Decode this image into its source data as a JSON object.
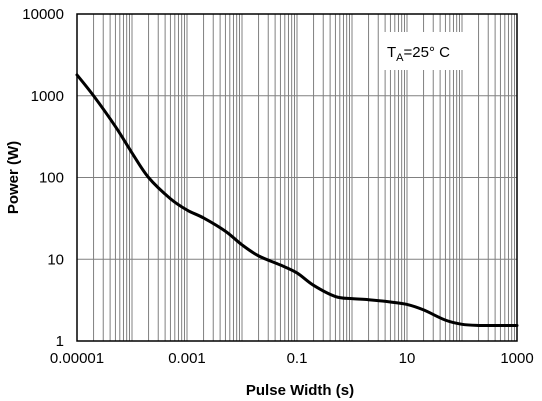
{
  "chart_data": {
    "type": "line",
    "title": "",
    "xlabel": "Pulse Width (s)",
    "ylabel": "Power (W)",
    "x_scale": "log",
    "y_scale": "log",
    "xlim": [
      1e-05,
      1000
    ],
    "ylim": [
      1,
      10000
    ],
    "x_ticks": [
      1e-05,
      0.001,
      0.1,
      10,
      1000
    ],
    "x_tick_labels": [
      "0.00001",
      "0.001",
      "0.1",
      "10",
      "1000"
    ],
    "y_ticks": [
      1,
      10,
      100,
      1000,
      10000
    ],
    "y_tick_labels": [
      "1",
      "10",
      "100",
      "1000",
      "10000"
    ],
    "grid": true,
    "legend": "none",
    "annotation": {
      "base": "T",
      "subscript": "A",
      "rest": "=25° C"
    },
    "line_color": "#000000",
    "grid_color": "#808080",
    "series": [
      {
        "x": [
          1e-05,
          2e-05,
          5e-05,
          0.0001,
          0.0002,
          0.0005,
          0.001,
          0.002,
          0.005,
          0.01,
          0.02,
          0.05,
          0.1,
          0.2,
          0.5,
          1,
          2,
          5,
          10,
          20,
          50,
          100,
          200,
          500,
          1000
        ],
        "y": [
          1800,
          1000,
          420,
          200,
          100,
          55,
          40,
          32,
          22,
          15,
          11,
          8.5,
          6.8,
          4.8,
          3.5,
          3.3,
          3.2,
          3.0,
          2.8,
          2.4,
          1.8,
          1.6,
          1.55,
          1.55,
          1.55
        ]
      }
    ]
  }
}
